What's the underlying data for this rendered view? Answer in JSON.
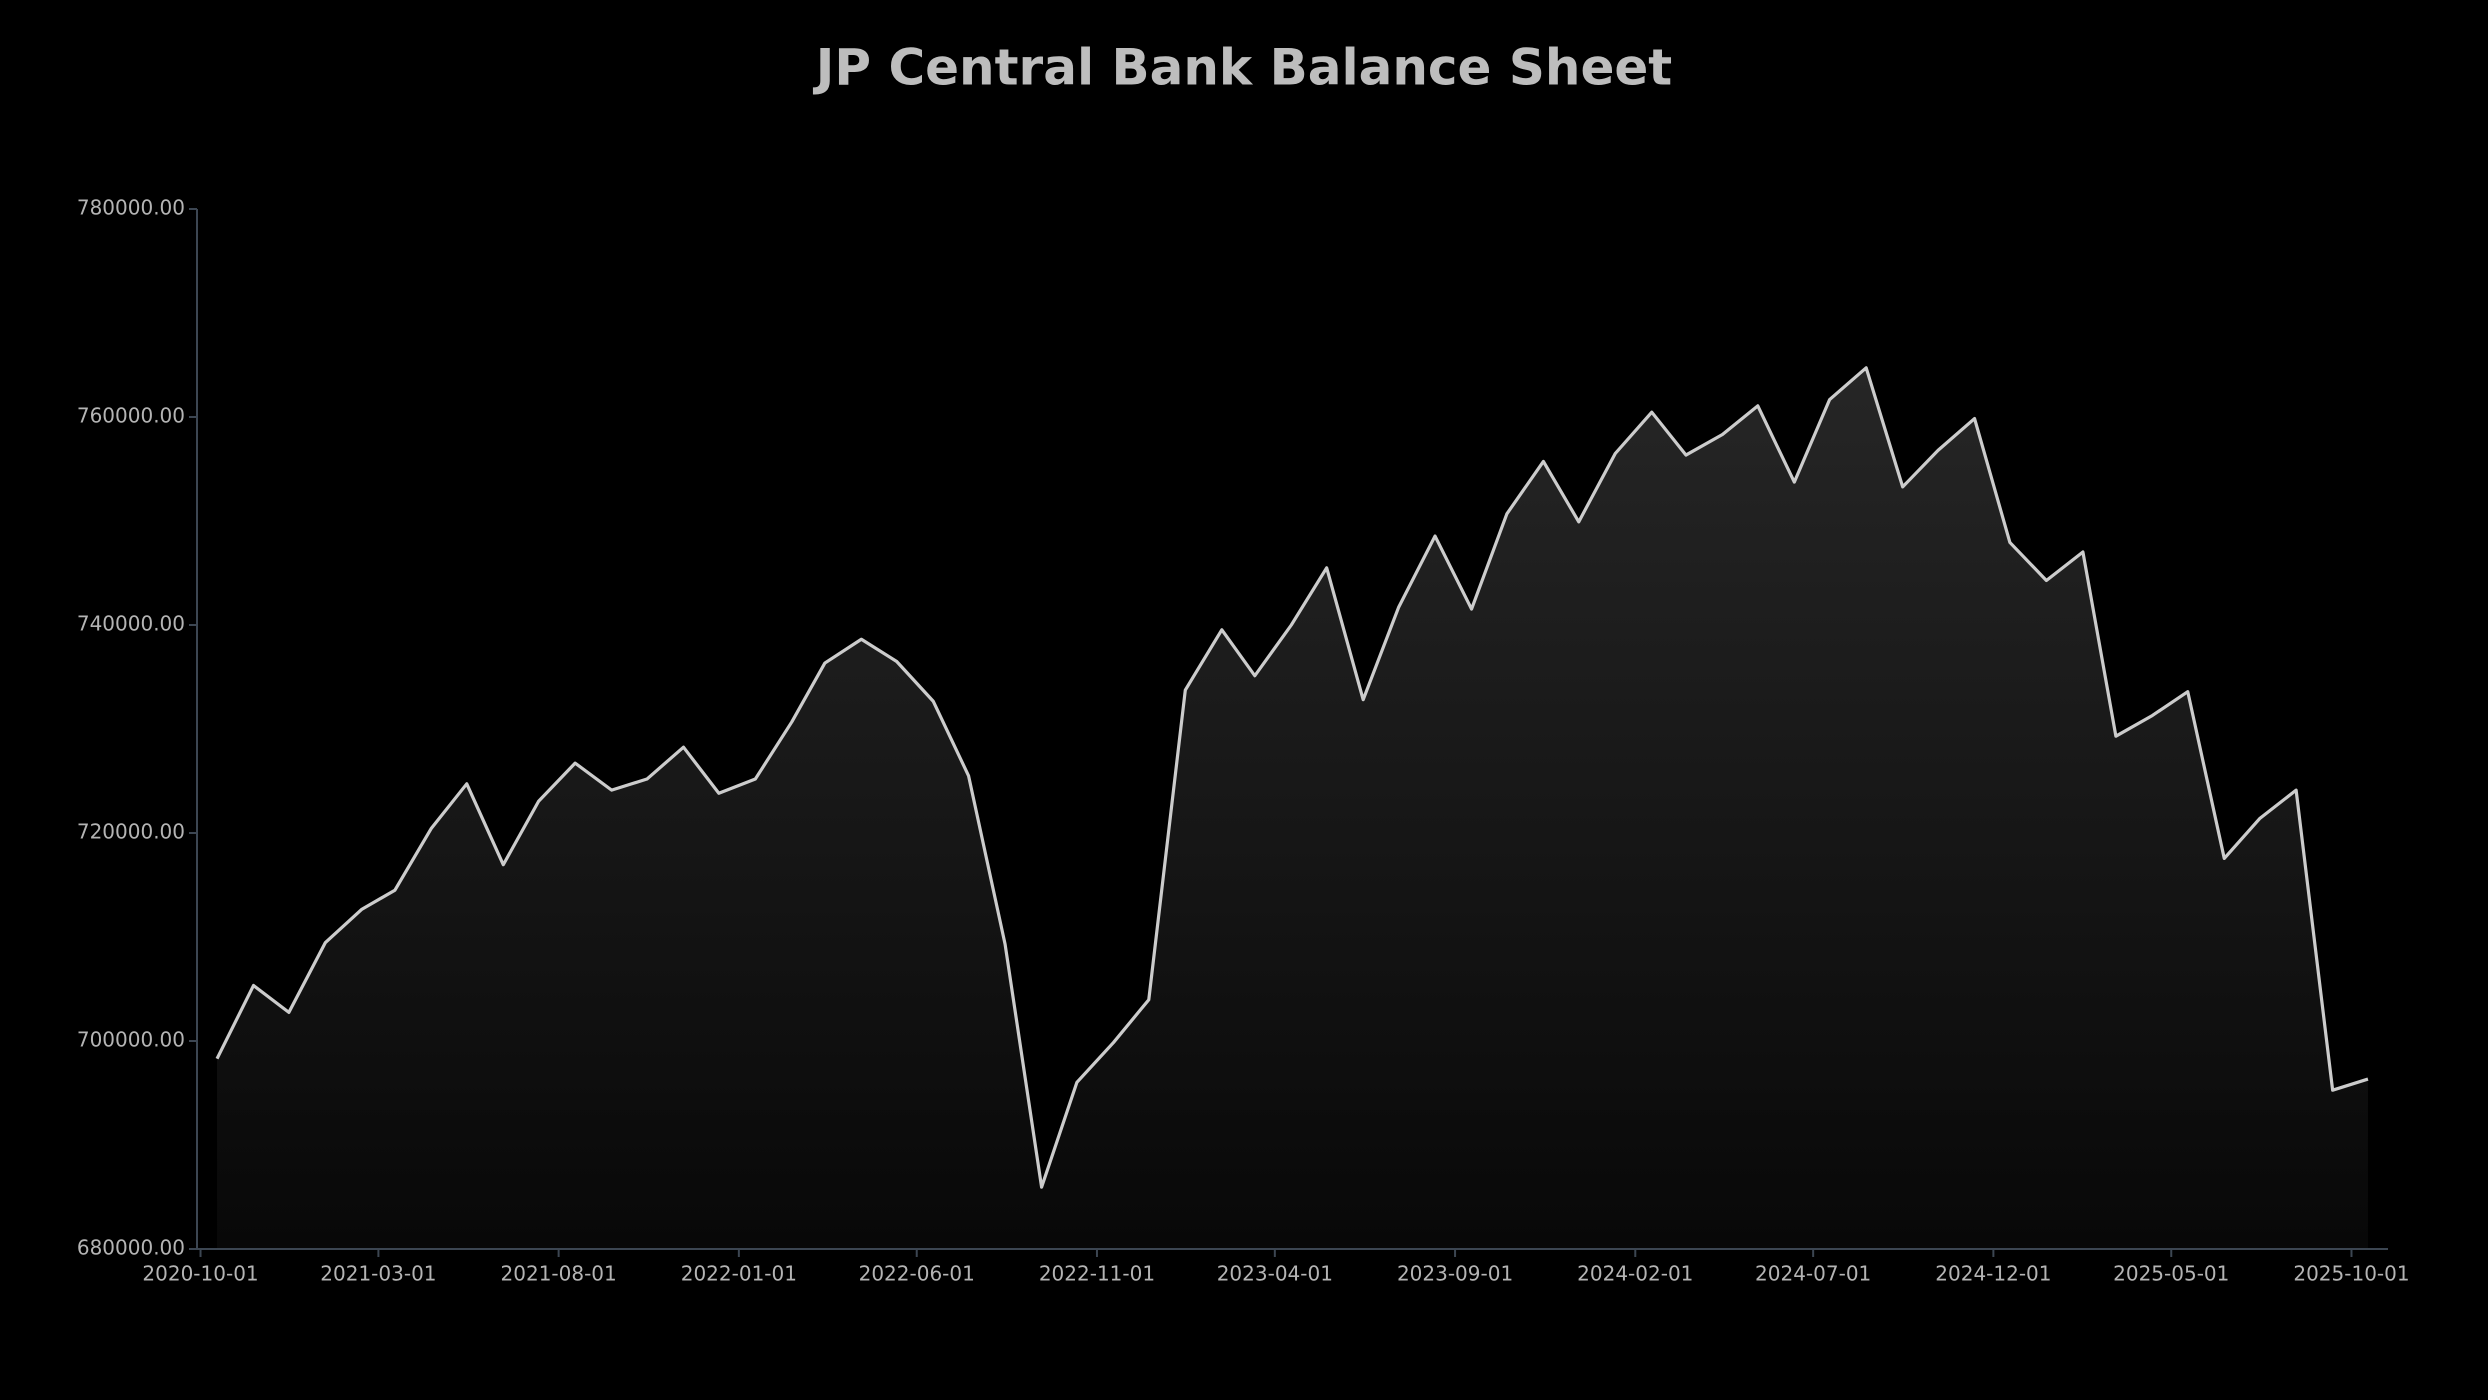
{
  "chart_data": {
    "type": "area",
    "title": "JP Central Bank Balance Sheet",
    "x": [
      "2020-10-15",
      "2020-11-15",
      "2020-12-15",
      "2021-01-15",
      "2021-02-15",
      "2021-03-15",
      "2021-04-15",
      "2021-05-15",
      "2021-06-15",
      "2021-07-15",
      "2021-08-15",
      "2021-09-15",
      "2021-10-15",
      "2021-11-15",
      "2021-12-15",
      "2022-01-15",
      "2022-02-15",
      "2022-03-15",
      "2022-04-15",
      "2022-05-15",
      "2022-06-15",
      "2022-07-15",
      "2022-08-15",
      "2022-09-15",
      "2022-10-15",
      "2022-11-15",
      "2022-12-15",
      "2023-01-15",
      "2023-02-15",
      "2023-03-15",
      "2023-04-15",
      "2023-05-15",
      "2023-06-15",
      "2023-07-15",
      "2023-08-15",
      "2023-09-15",
      "2023-10-15",
      "2023-11-15",
      "2023-12-15",
      "2024-01-15",
      "2024-02-15",
      "2024-03-15",
      "2024-04-15",
      "2024-05-15",
      "2024-06-15",
      "2024-07-15",
      "2024-08-15",
      "2024-09-15",
      "2024-10-15",
      "2024-11-15",
      "2024-12-15",
      "2025-01-15",
      "2025-02-15",
      "2025-03-15",
      "2025-04-15",
      "2025-05-15",
      "2025-06-15",
      "2025-07-15",
      "2025-08-15",
      "2025-09-15",
      "2025-10-15"
    ],
    "series": [
      {
        "name": "Balance Sheet",
        "color": "#cccccc",
        "values": [
          698300,
          705340,
          702750,
          709470,
          712670,
          714500,
          720460,
          724730,
          716950,
          723050,
          726720,
          724120,
          725190,
          728250,
          723820,
          725190,
          730690,
          736340,
          738630,
          736490,
          732670,
          725500,
          709310,
          685950,
          696030,
          699850,
          703970,
          733740,
          739540,
          735120,
          740000,
          745500,
          732820,
          741680,
          748550,
          741530,
          750690,
          755730,
          749920,
          756490,
          760460,
          756340,
          758320,
          761070,
          753740,
          761680,
          764730,
          753280,
          756790,
          759850,
          747940,
          744280,
          747020,
          729310,
          731300,
          733590,
          717560,
          721380,
          724120,
          695270,
          696340
        ]
      }
    ],
    "xlim": [
      "2020-09-28",
      "2025-11-01"
    ],
    "xticks": [
      "2020-10-01",
      "2021-03-01",
      "2021-08-01",
      "2022-01-01",
      "2022-06-01",
      "2022-11-01",
      "2023-04-01",
      "2023-09-01",
      "2024-02-01",
      "2024-07-01",
      "2024-12-01",
      "2025-05-01",
      "2025-10-01"
    ],
    "ylim": [
      680000,
      780000
    ],
    "yticks": [
      {
        "value": 680000,
        "label": "680000.00"
      },
      {
        "value": 700000,
        "label": "700000.00"
      },
      {
        "value": 720000,
        "label": "720000.00"
      },
      {
        "value": 740000,
        "label": "740000.00"
      },
      {
        "value": 760000,
        "label": "760000.00"
      },
      {
        "value": 780000,
        "label": "780000.00"
      }
    ],
    "grid": false
  }
}
